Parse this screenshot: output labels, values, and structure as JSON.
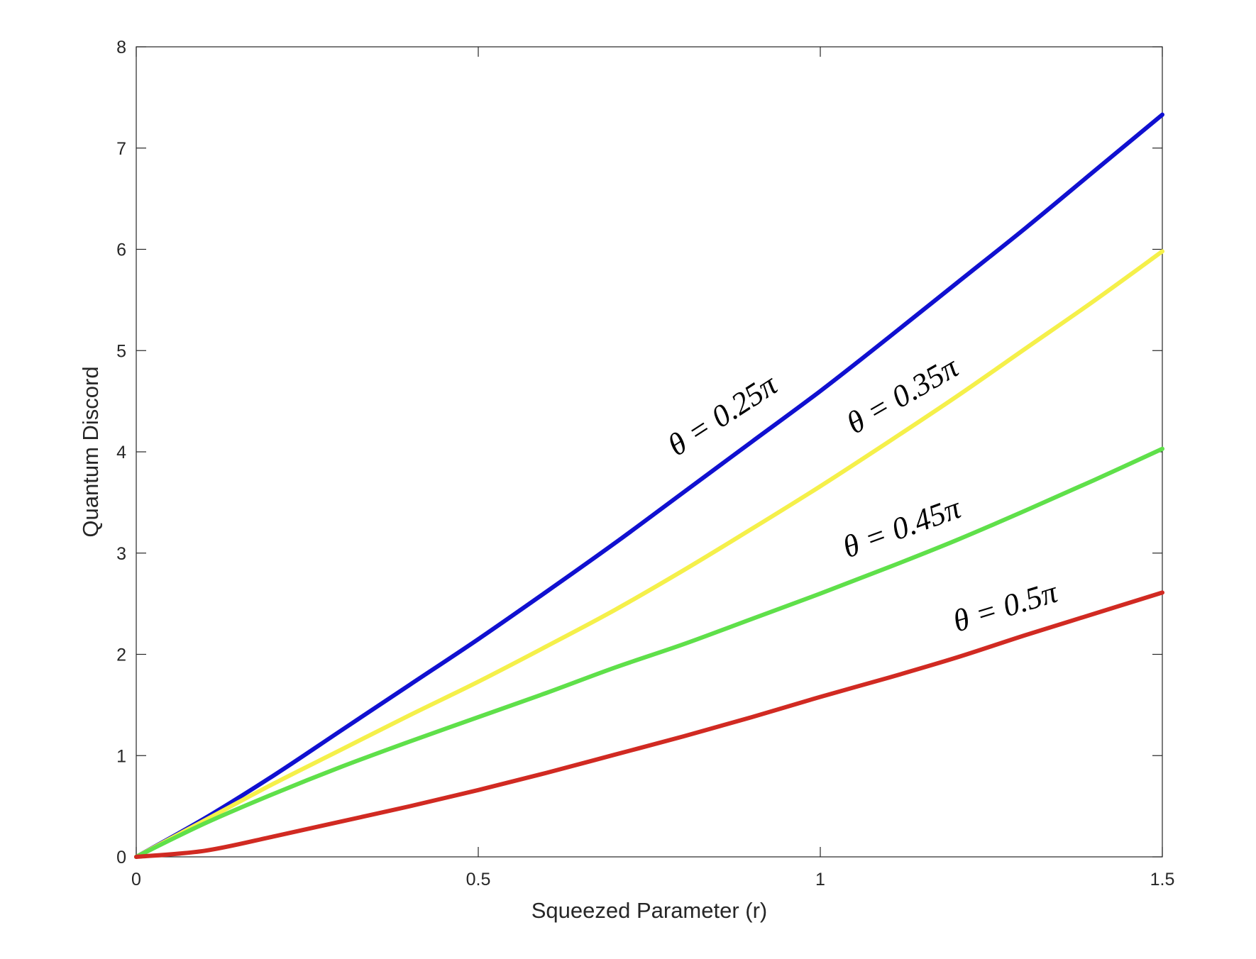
{
  "chart_data": {
    "type": "line",
    "title": "",
    "xlabel": "Squeezed Parameter (r)",
    "ylabel": "Quantum Discord",
    "xlim": [
      0,
      1.5
    ],
    "ylim": [
      0,
      8
    ],
    "xticks": [
      0,
      0.5,
      1,
      1.5
    ],
    "xtick_labels": [
      "0",
      "0.5",
      "1",
      "1.5"
    ],
    "yticks": [
      0,
      1,
      2,
      3,
      4,
      5,
      6,
      7,
      8
    ],
    "ytick_labels": [
      "0",
      "1",
      "2",
      "3",
      "4",
      "5",
      "6",
      "7",
      "8"
    ],
    "grid": false,
    "legend": "none",
    "x": [
      0,
      0.1,
      0.2,
      0.3,
      0.4,
      0.5,
      0.6,
      0.7,
      0.8,
      0.9,
      1.0,
      1.1,
      1.2,
      1.3,
      1.4,
      1.5
    ],
    "series": [
      {
        "color": "#1010d0",
        "label": "θ = 0.25π",
        "values": [
          0,
          0.38,
          0.8,
          1.25,
          1.7,
          2.15,
          2.62,
          3.1,
          3.6,
          4.1,
          4.6,
          5.13,
          5.67,
          6.21,
          6.77,
          7.33
        ]
      },
      {
        "color": "#f5f04a",
        "label": "θ = 0.35π",
        "values": [
          0,
          0.36,
          0.72,
          1.06,
          1.4,
          1.73,
          2.08,
          2.44,
          2.83,
          3.24,
          3.66,
          4.1,
          4.55,
          5.02,
          5.49,
          5.98
        ]
      },
      {
        "color": "#5fe04a",
        "label": "θ = 0.45π",
        "values": [
          0,
          0.33,
          0.62,
          0.89,
          1.14,
          1.38,
          1.62,
          1.87,
          2.1,
          2.35,
          2.6,
          2.86,
          3.13,
          3.42,
          3.72,
          4.03
        ]
      },
      {
        "color": "#d12a22",
        "label": "θ = 0.5π",
        "values": [
          0,
          0.06,
          0.2,
          0.35,
          0.5,
          0.66,
          0.83,
          1.01,
          1.19,
          1.38,
          1.58,
          1.77,
          1.97,
          2.19,
          2.4,
          2.61
        ]
      }
    ],
    "annotations": [
      {
        "text": "θ = 0.25π",
        "x": 0.79,
        "y": 3.95,
        "color": "#000000"
      },
      {
        "text": "θ = 0.35π",
        "x": 1.05,
        "y": 4.17,
        "color": "#000000"
      },
      {
        "text": "θ = 0.45π",
        "x": 1.04,
        "y": 2.95,
        "color": "#000000"
      },
      {
        "text": "θ = 0.5π",
        "x": 1.2,
        "y": 2.22,
        "color": "#000000"
      }
    ]
  }
}
